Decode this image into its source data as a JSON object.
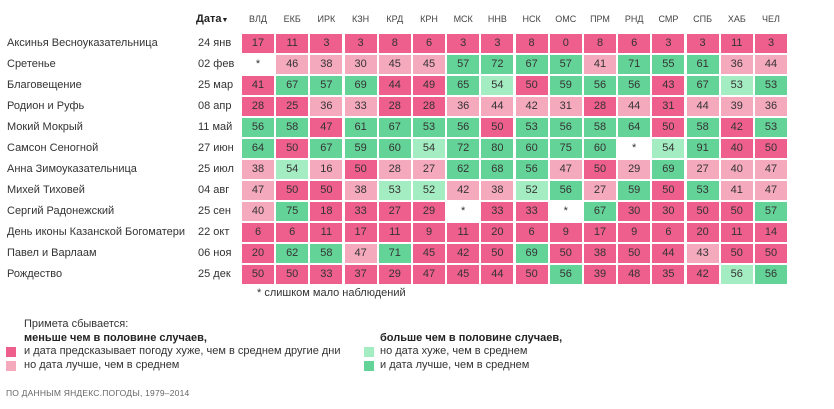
{
  "colors": {
    "worse_less_half": "#ee5f8e",
    "better_less_half": "#f5a9bd",
    "worse_more_half": "#a4ecc2",
    "better_more_half": "#64d398",
    "insufficient": "#ffffff"
  },
  "chart_data": {
    "type": "heatmap",
    "date_column_label": "Дата",
    "columns": [
      "ВЛД",
      "ЕКБ",
      "ИРК",
      "КЗН",
      "КРД",
      "КРН",
      "МСК",
      "ННВ",
      "НСК",
      "ОМС",
      "ПРМ",
      "РНД",
      "СМР",
      "СПБ",
      "ХАБ",
      "ЧЕЛ"
    ],
    "rows": [
      {
        "name": "Аксинья Весноуказательница",
        "date": "24 янв",
        "values": [
          "17",
          "11",
          "3",
          "3",
          "8",
          "6",
          "3",
          "3",
          "8",
          "0",
          "8",
          "6",
          "3",
          "3",
          "11",
          "3"
        ],
        "classes": [
          1,
          1,
          1,
          1,
          1,
          1,
          1,
          1,
          1,
          1,
          1,
          1,
          1,
          1,
          1,
          1
        ]
      },
      {
        "name": "Сретенье",
        "date": "02 фев",
        "values": [
          "*",
          "46",
          "38",
          "30",
          "45",
          "45",
          "57",
          "72",
          "67",
          "57",
          "41",
          "71",
          "55",
          "61",
          "36",
          "44"
        ],
        "classes": [
          0,
          2,
          2,
          2,
          2,
          2,
          4,
          4,
          4,
          4,
          2,
          4,
          4,
          4,
          2,
          2
        ]
      },
      {
        "name": "Благовещение",
        "date": "25 мар",
        "values": [
          "41",
          "67",
          "57",
          "69",
          "44",
          "49",
          "65",
          "54",
          "50",
          "59",
          "56",
          "56",
          "43",
          "67",
          "53",
          "53"
        ],
        "classes": [
          1,
          4,
          4,
          4,
          1,
          1,
          4,
          3,
          1,
          4,
          4,
          4,
          1,
          4,
          3,
          4
        ]
      },
      {
        "name": "Родион и Руфь",
        "date": "08 апр",
        "values": [
          "28",
          "25",
          "36",
          "33",
          "28",
          "28",
          "36",
          "44",
          "42",
          "31",
          "28",
          "44",
          "31",
          "44",
          "39",
          "36"
        ],
        "classes": [
          1,
          1,
          2,
          2,
          1,
          1,
          2,
          2,
          2,
          2,
          1,
          2,
          1,
          2,
          2,
          2
        ]
      },
      {
        "name": "Мокий Мокрый",
        "date": "11 май",
        "values": [
          "56",
          "58",
          "47",
          "61",
          "67",
          "53",
          "56",
          "50",
          "53",
          "56",
          "58",
          "64",
          "50",
          "58",
          "42",
          "53"
        ],
        "classes": [
          4,
          4,
          1,
          4,
          4,
          4,
          4,
          1,
          4,
          4,
          4,
          4,
          1,
          4,
          1,
          4
        ]
      },
      {
        "name": "Самсон Сеногной",
        "date": "27 июн",
        "values": [
          "64",
          "50",
          "67",
          "59",
          "60",
          "54",
          "72",
          "80",
          "60",
          "75",
          "60",
          "*",
          "54",
          "91",
          "40",
          "50"
        ],
        "classes": [
          4,
          1,
          4,
          4,
          4,
          3,
          4,
          4,
          4,
          4,
          4,
          0,
          3,
          4,
          1,
          1
        ]
      },
      {
        "name": "Анна Зимоуказательница",
        "date": "25 июл",
        "values": [
          "38",
          "54",
          "16",
          "50",
          "28",
          "27",
          "62",
          "68",
          "56",
          "47",
          "50",
          "29",
          "69",
          "27",
          "40",
          "47"
        ],
        "classes": [
          2,
          3,
          2,
          1,
          2,
          2,
          4,
          4,
          4,
          2,
          1,
          2,
          4,
          2,
          2,
          2
        ]
      },
      {
        "name": "Михей Тиховей",
        "date": "04 авг",
        "values": [
          "47",
          "50",
          "50",
          "38",
          "53",
          "52",
          "42",
          "38",
          "52",
          "56",
          "27",
          "59",
          "50",
          "53",
          "41",
          "47"
        ],
        "classes": [
          2,
          1,
          1,
          2,
          3,
          3,
          2,
          2,
          3,
          4,
          2,
          4,
          1,
          4,
          2,
          2
        ]
      },
      {
        "name": "Сергий Радонежский",
        "date": "25 сен",
        "values": [
          "40",
          "75",
          "18",
          "33",
          "27",
          "29",
          "*",
          "33",
          "33",
          "*",
          "67",
          "30",
          "30",
          "50",
          "50",
          "57"
        ],
        "classes": [
          2,
          4,
          1,
          1,
          1,
          1,
          0,
          1,
          1,
          0,
          4,
          1,
          1,
          1,
          1,
          4
        ]
      },
      {
        "name": "День иконы Казанской Богоматери",
        "date": "22 окт",
        "values": [
          "6",
          "6",
          "11",
          "17",
          "11",
          "9",
          "11",
          "20",
          "6",
          "9",
          "17",
          "9",
          "6",
          "20",
          "11",
          "14"
        ],
        "classes": [
          1,
          1,
          1,
          1,
          1,
          1,
          1,
          1,
          1,
          1,
          1,
          1,
          1,
          1,
          1,
          1
        ]
      },
      {
        "name": "Павел и Варлаам",
        "date": "06 ноя",
        "values": [
          "20",
          "62",
          "58",
          "47",
          "71",
          "45",
          "42",
          "50",
          "69",
          "50",
          "38",
          "50",
          "44",
          "43",
          "50",
          "50"
        ],
        "classes": [
          1,
          4,
          4,
          2,
          4,
          1,
          1,
          1,
          4,
          1,
          1,
          1,
          1,
          2,
          1,
          1
        ]
      },
      {
        "name": "Рождество",
        "date": "25 дек",
        "values": [
          "50",
          "50",
          "33",
          "37",
          "29",
          "47",
          "45",
          "44",
          "50",
          "56",
          "39",
          "48",
          "35",
          "42",
          "56",
          "56"
        ],
        "classes": [
          1,
          1,
          1,
          1,
          1,
          1,
          1,
          1,
          1,
          4,
          1,
          1,
          1,
          1,
          3,
          4
        ]
      }
    ],
    "footnote": "* слишком мало наблюдений"
  },
  "legend": {
    "title": "Примета сбывается:",
    "left_heading": "меньше чем в половине случаев,",
    "left_items": [
      "и дата предсказывает погоду хуже, чем в среднем другие дни",
      "но дата лучше, чем в среднем"
    ],
    "right_heading": "больше чем в половине случаев,",
    "right_items": [
      "но дата хуже, чем в среднем",
      "и дата лучше, чем в среднем"
    ]
  },
  "source": "ПО ДАННЫМ ЯНДЕКС.ПОГОДЫ, 1979–2014"
}
